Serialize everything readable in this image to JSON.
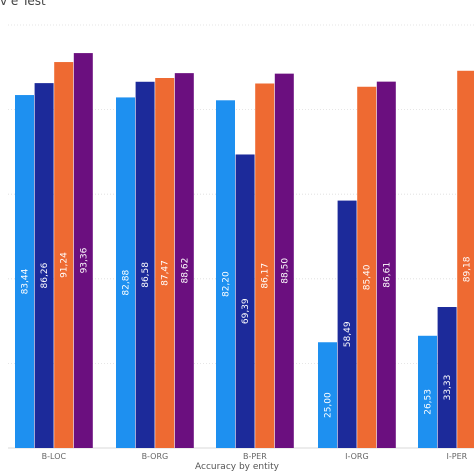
{
  "chart_data": {
    "type": "bar",
    "title": "v e Test",
    "xlabel": "Accuracy by entity",
    "ylabel": "",
    "ylim": [
      0,
      100
    ],
    "grid": true,
    "categories": [
      "B-LOC",
      "B-ORG",
      "B-PER",
      "I-ORG",
      "I-PER"
    ],
    "series": [
      {
        "values": [
          83.44,
          82.88,
          82.2,
          25.0,
          26.53
        ]
      },
      {
        "values": [
          86.26,
          86.58,
          69.39,
          58.49,
          33.33
        ]
      },
      {
        "values": [
          91.24,
          87.47,
          86.17,
          85.4,
          89.18
        ]
      },
      {
        "values": [
          93.36,
          88.62,
          88.5,
          86.61,
          null
        ]
      }
    ],
    "value_labels": [
      [
        "83,44",
        "82,88",
        "82,20",
        "25,00",
        "26,53"
      ],
      [
        "86,26",
        "86,58",
        "69,39",
        "58,49",
        "33,33"
      ],
      [
        "91,24",
        "87,47",
        "86,17",
        "85,40",
        "89,18"
      ],
      [
        "93,36",
        "88,62",
        "88,50",
        "86,61",
        ""
      ]
    ],
    "colors": [
      "#1e90f0",
      "#1c2a9a",
      "#ee6a32",
      "#6b0f7f"
    ]
  }
}
